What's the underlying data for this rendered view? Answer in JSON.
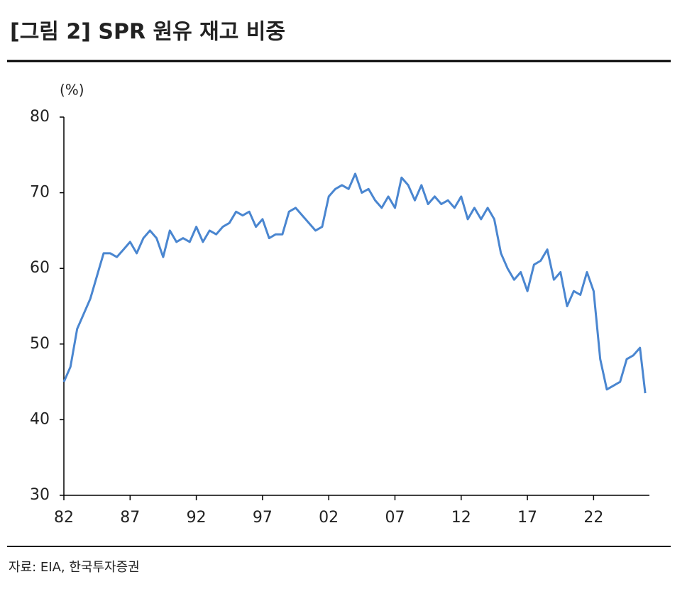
{
  "chart_data": {
    "type": "line",
    "title": "[그림 2] SPR 원유 재고 비중",
    "y_label": "(%)",
    "source": "자료: EIA, 한국투자증권",
    "x": [
      1982.0,
      1982.5,
      1983.0,
      1983.5,
      1984.0,
      1984.5,
      1985.0,
      1985.5,
      1986.0,
      1986.5,
      1987.0,
      1987.5,
      1988.0,
      1988.5,
      1989.0,
      1989.5,
      1990.0,
      1990.5,
      1991.0,
      1991.5,
      1992.0,
      1992.5,
      1993.0,
      1993.5,
      1994.0,
      1994.5,
      1995.0,
      1995.5,
      1996.0,
      1996.5,
      1997.0,
      1997.5,
      1998.0,
      1998.5,
      1999.0,
      1999.5,
      2000.0,
      2000.5,
      2001.0,
      2001.5,
      2002.0,
      2002.5,
      2003.0,
      2003.5,
      2004.0,
      2004.5,
      2005.0,
      2005.5,
      2006.0,
      2006.5,
      2007.0,
      2007.5,
      2008.0,
      2008.5,
      2009.0,
      2009.5,
      2010.0,
      2010.5,
      2011.0,
      2011.5,
      2012.0,
      2012.5,
      2013.0,
      2013.5,
      2014.0,
      2014.5,
      2015.0,
      2015.5,
      2016.0,
      2016.5,
      2017.0,
      2017.5,
      2018.0,
      2018.5,
      2019.0,
      2019.5,
      2020.0,
      2020.5,
      2021.0,
      2021.5,
      2022.0,
      2022.5,
      2023.0,
      2023.5,
      2024.0,
      2024.5,
      2025.0,
      2025.5,
      2025.9
    ],
    "series": [
      {
        "name": "SPR 원유 재고 비중",
        "color": "#4a86d0",
        "values": [
          45,
          47,
          52,
          54,
          56,
          59,
          62,
          62,
          61.5,
          62.5,
          63.5,
          62,
          64,
          65,
          64,
          61.5,
          65,
          63.5,
          64,
          63.5,
          65.5,
          63.5,
          65,
          64.5,
          65.5,
          66,
          67.5,
          67,
          67.5,
          65.5,
          66.5,
          64,
          64.5,
          64.5,
          67.5,
          68,
          67,
          66,
          65,
          65.5,
          69.5,
          70.5,
          71,
          70.5,
          72.5,
          70,
          70.5,
          69,
          68,
          69.5,
          68,
          72,
          71,
          69,
          71,
          68.5,
          69.5,
          68.5,
          69,
          68,
          69.5,
          66.5,
          68,
          66.5,
          68,
          66.5,
          62,
          60,
          58.5,
          59.5,
          57,
          60.5,
          61,
          62.5,
          58.5,
          59.5,
          55,
          57,
          56.5,
          59.5,
          57,
          48,
          44,
          44.5,
          45,
          48,
          48.5,
          49.5,
          43.5
        ]
      }
    ],
    "xlim": [
      1982,
      2026
    ],
    "xticks": [
      {
        "value": 1982,
        "label": "82"
      },
      {
        "value": 1987,
        "label": "87"
      },
      {
        "value": 1992,
        "label": "92"
      },
      {
        "value": 1997,
        "label": "97"
      },
      {
        "value": 2002,
        "label": "02"
      },
      {
        "value": 2007,
        "label": "07"
      },
      {
        "value": 2012,
        "label": "12"
      },
      {
        "value": 2017,
        "label": "17"
      },
      {
        "value": 2022,
        "label": "22"
      }
    ],
    "ylim": [
      30,
      80
    ],
    "yticks": [
      30,
      40,
      50,
      60,
      70,
      80
    ]
  }
}
